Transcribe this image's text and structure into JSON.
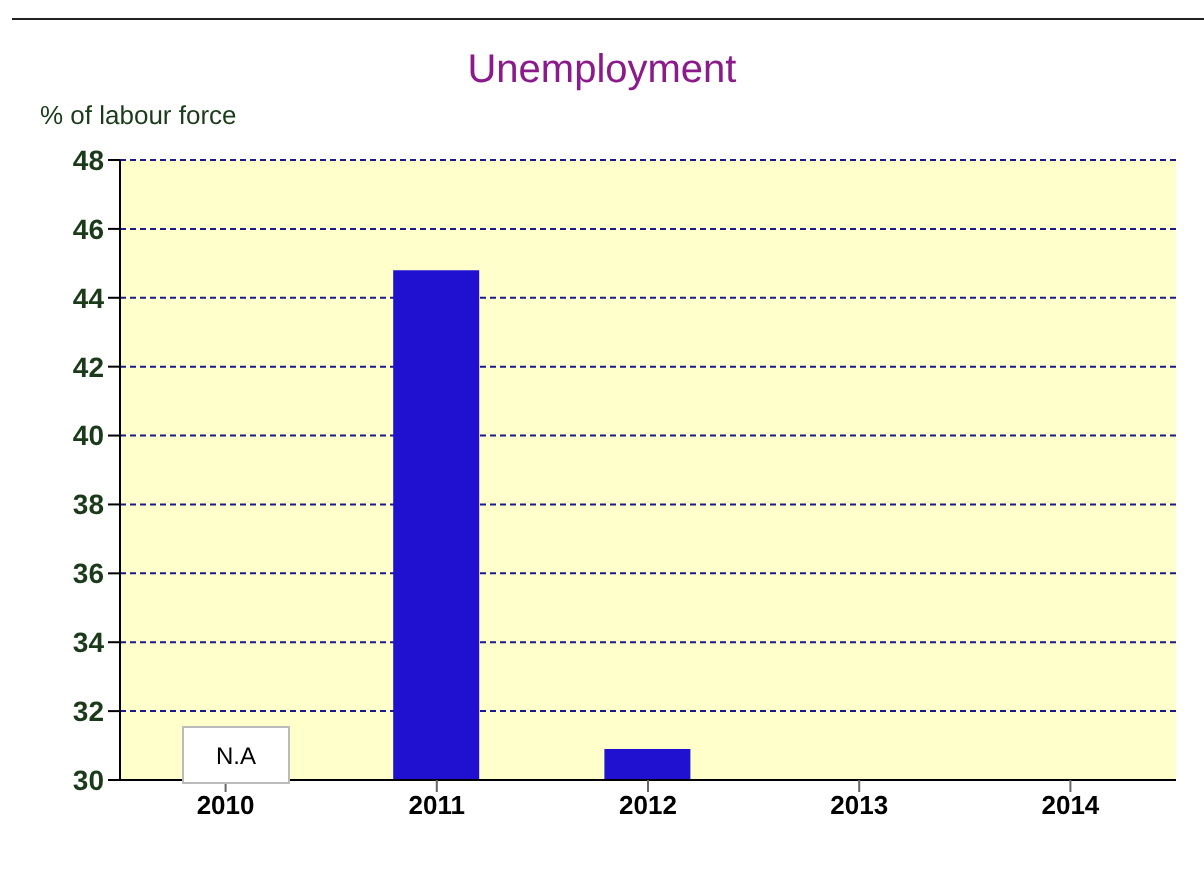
{
  "chart_data": {
    "type": "bar",
    "title": "Unemployment",
    "ylabel": "% of labour force",
    "categories": [
      "2010",
      "2011",
      "2012",
      "2013",
      "2014"
    ],
    "values": [
      null,
      44.8,
      30.9,
      null,
      null
    ],
    "color": "#2010d0",
    "ylim": [
      30,
      48
    ],
    "yticks": [
      30,
      32,
      34,
      36,
      38,
      40,
      42,
      44,
      46,
      48
    ],
    "grid": "y",
    "annotations": [
      "N.A"
    ]
  }
}
